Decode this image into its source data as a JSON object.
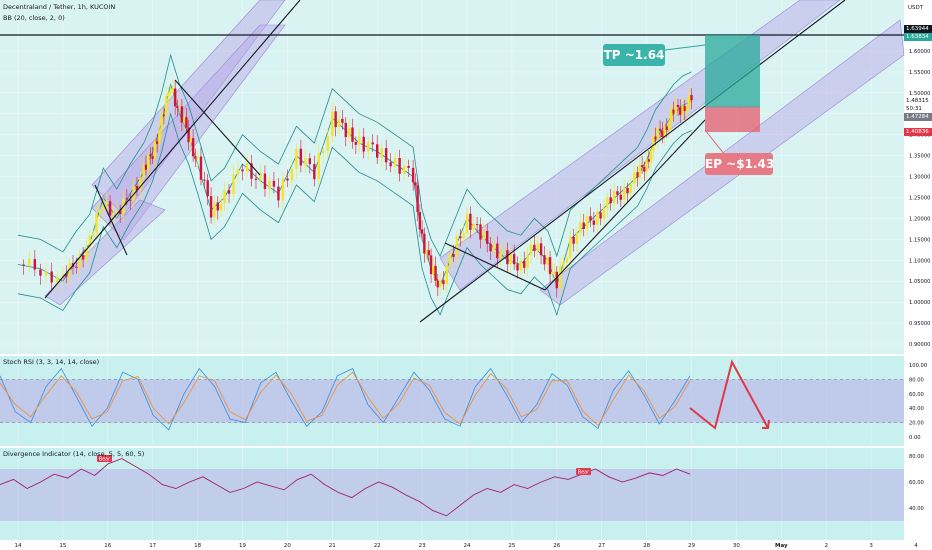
{
  "header": {
    "symbol_line": "Decentraland / Tether, 1h, KUCOIN",
    "bb_line": "BB (20, close, 2, 0)"
  },
  "currency_label": "USDT",
  "stoch_header": "Stoch RSI (3, 3, 14, 14, close)",
  "div_header": "Divergence Indicator (14, close, 5, 5, 60, 5)",
  "annotations": {
    "tp": "TP ~1.64",
    "ep": "EP ~$1.43"
  },
  "price_labels": {
    "high": "1.63944",
    "sub": "1.63834",
    "current": "1.48315",
    "countdown": "50:31",
    "gray": "1.47284",
    "red": "1.40836"
  },
  "colors": {
    "background_main": "#d9f2f2",
    "channel_fill": "#b8a3e6",
    "bull_candle": "#f5e42c",
    "bear_candle": "#d0143c",
    "bollinger": "#1f8e8e",
    "tp_box": "#2aa89b",
    "ep_box": "#e45c6e",
    "stoch_k": "#3b8be0",
    "stoch_d": "#f08c2e",
    "divergence_line": "#a01e6e"
  },
  "chart_data": [
    {
      "type": "line",
      "title": "Decentraland / Tether, 1h, KUCOIN",
      "ylabel": "USDT",
      "ylim": [
        0.88,
        1.68
      ],
      "y_ticks": [
        "1.60000",
        "1.55000",
        "1.50000",
        "1.45000",
        "1.40000",
        "1.35000",
        "1.30000",
        "1.25000",
        "1.20000",
        "1.15000",
        "1.10000",
        "1.05000",
        "1.00000",
        "0.95000",
        "0.90000"
      ],
      "x_ticks": [
        "14",
        "15",
        "16",
        "17",
        "18",
        "19",
        "20",
        "21",
        "22",
        "23",
        "24",
        "25",
        "26",
        "27",
        "28",
        "29",
        "30",
        "May",
        "2",
        "3",
        "4"
      ],
      "series": [
        {
          "name": "MANA/USDT close",
          "x": [
            14.0,
            14.5,
            15.0,
            15.3,
            15.6,
            15.9,
            16.2,
            16.5,
            16.8,
            17.0,
            17.2,
            17.4,
            17.6,
            17.8,
            18.0,
            18.3,
            18.6,
            19.0,
            19.4,
            19.8,
            20.2,
            20.6,
            21.0,
            21.3,
            21.6,
            22.0,
            22.4,
            22.8,
            23.0,
            23.2,
            23.4,
            23.7,
            24.0,
            24.3,
            24.6,
            24.9,
            25.2,
            25.5,
            25.8,
            26.0,
            26.3,
            26.6,
            26.9,
            27.2,
            27.5,
            27.8,
            28.0,
            28.2,
            28.4,
            28.6,
            28.8,
            29.0
          ],
          "y": [
            1.09,
            1.08,
            1.05,
            1.1,
            1.14,
            1.25,
            1.2,
            1.26,
            1.31,
            1.36,
            1.43,
            1.52,
            1.45,
            1.4,
            1.33,
            1.22,
            1.25,
            1.33,
            1.29,
            1.26,
            1.35,
            1.31,
            1.44,
            1.41,
            1.38,
            1.36,
            1.33,
            1.3,
            1.15,
            1.08,
            1.04,
            1.12,
            1.2,
            1.16,
            1.13,
            1.1,
            1.09,
            1.13,
            1.1,
            1.04,
            1.15,
            1.18,
            1.21,
            1.24,
            1.27,
            1.3,
            1.34,
            1.39,
            1.42,
            1.45,
            1.47,
            1.48
          ]
        }
      ],
      "annotations": [
        "TP ~1.64",
        "EP ~$1.43"
      ]
    },
    {
      "type": "line",
      "title": "Stoch RSI (3, 3, 14, 14, close)",
      "ylim": [
        0,
        100
      ],
      "y_ticks": [
        "100.00",
        "80.00",
        "60.00",
        "40.00",
        "20.00",
        "0.00"
      ],
      "series": [
        {
          "name": "%K",
          "values": [
            85,
            35,
            20,
            70,
            95,
            55,
            15,
            40,
            90,
            80,
            30,
            10,
            60,
            95,
            70,
            25,
            20,
            75,
            90,
            50,
            15,
            35,
            85,
            95,
            45,
            20,
            55,
            90,
            65,
            25,
            15,
            70,
            95,
            60,
            20,
            45,
            88,
            72,
            28,
            12,
            65,
            92,
            58,
            18,
            50,
            85
          ]
        },
        {
          "name": "%D",
          "values": [
            75,
            45,
            28,
            58,
            85,
            62,
            25,
            35,
            78,
            84,
            40,
            18,
            48,
            85,
            78,
            35,
            24,
            62,
            86,
            60,
            22,
            30,
            72,
            90,
            55,
            26,
            46,
            82,
            72,
            34,
            18,
            58,
            88,
            68,
            28,
            38,
            78,
            78,
            36,
            16,
            52,
            86,
            64,
            26,
            42,
            78
          ]
        }
      ]
    },
    {
      "type": "line",
      "title": "Divergence Indicator (14, close, 5, 5, 60, 5)",
      "ylim": [
        30,
        85
      ],
      "y_ticks": [
        "80.00",
        "60.00",
        "40.00"
      ],
      "series": [
        {
          "name": "RSI",
          "values": [
            58,
            62,
            55,
            60,
            66,
            63,
            70,
            65,
            74,
            78,
            72,
            66,
            58,
            55,
            60,
            64,
            58,
            52,
            55,
            60,
            57,
            54,
            62,
            66,
            58,
            52,
            48,
            55,
            60,
            56,
            50,
            45,
            38,
            34,
            42,
            50,
            55,
            52,
            58,
            55,
            60,
            64,
            62,
            66,
            70,
            64,
            60,
            63,
            67,
            65,
            70,
            66
          ]
        }
      ],
      "annotations": [
        "Bear",
        "Bear"
      ]
    }
  ]
}
